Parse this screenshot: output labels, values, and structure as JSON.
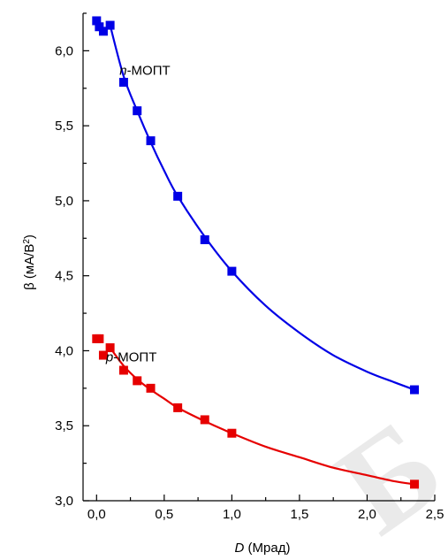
{
  "chart_data": {
    "type": "scatter",
    "xlabel": {
      "italic": "D",
      "rest": " (Мрад)"
    },
    "ylabel": {
      "greek": "β",
      "base": "  (мА/В",
      "sup": "2",
      "close": ")"
    },
    "xlim": [
      -0.1,
      2.5
    ],
    "ylim": [
      3.0,
      6.25
    ],
    "x_ticks": [
      0.0,
      0.5,
      1.0,
      1.5,
      2.0,
      2.5
    ],
    "x_tick_labels": [
      "0,0",
      "0,5",
      "1,0",
      "1,5",
      "2,0",
      "2,5"
    ],
    "y_ticks": [
      3.0,
      3.5,
      4.0,
      4.5,
      5.0,
      5.5,
      6.0
    ],
    "y_tick_labels": [
      "3,0",
      "3,5",
      "4,0",
      "4,5",
      "5,0",
      "5,5",
      "6,0"
    ],
    "grid": false,
    "series": [
      {
        "name": "n-МОПТ",
        "label_italic": "n",
        "label_rest": "-МОПТ",
        "color": "#0000e6",
        "marker": "square",
        "points": [
          {
            "x": 0.0,
            "y": 6.2
          },
          {
            "x": 0.02,
            "y": 6.16
          },
          {
            "x": 0.05,
            "y": 6.13
          },
          {
            "x": 0.1,
            "y": 6.17
          },
          {
            "x": 0.2,
            "y": 5.79
          },
          {
            "x": 0.3,
            "y": 5.6
          },
          {
            "x": 0.4,
            "y": 5.4
          },
          {
            "x": 0.6,
            "y": 5.03
          },
          {
            "x": 0.8,
            "y": 4.74
          },
          {
            "x": 1.0,
            "y": 4.53
          },
          {
            "x": 2.35,
            "y": 3.74
          }
        ],
        "fit": [
          {
            "x": 0.1,
            "y": 6.17
          },
          {
            "x": 0.2,
            "y": 5.83
          },
          {
            "x": 0.3,
            "y": 5.6
          },
          {
            "x": 0.4,
            "y": 5.39
          },
          {
            "x": 0.5,
            "y": 5.2
          },
          {
            "x": 0.6,
            "y": 5.03
          },
          {
            "x": 0.8,
            "y": 4.76
          },
          {
            "x": 1.0,
            "y": 4.53
          },
          {
            "x": 1.25,
            "y": 4.3
          },
          {
            "x": 1.5,
            "y": 4.12
          },
          {
            "x": 1.75,
            "y": 3.97
          },
          {
            "x": 2.0,
            "y": 3.86
          },
          {
            "x": 2.2,
            "y": 3.79
          },
          {
            "x": 2.35,
            "y": 3.74
          }
        ]
      },
      {
        "name": "p-МОПТ",
        "label_italic": "p",
        "label_rest": "-МОПТ",
        "color": "#e60000",
        "marker": "square",
        "points": [
          {
            "x": 0.0,
            "y": 4.08
          },
          {
            "x": 0.02,
            "y": 4.08
          },
          {
            "x": 0.05,
            "y": 3.97
          },
          {
            "x": 0.1,
            "y": 4.02
          },
          {
            "x": 0.2,
            "y": 3.87
          },
          {
            "x": 0.3,
            "y": 3.8
          },
          {
            "x": 0.4,
            "y": 3.75
          },
          {
            "x": 0.6,
            "y": 3.62
          },
          {
            "x": 0.8,
            "y": 3.54
          },
          {
            "x": 1.0,
            "y": 3.45
          },
          {
            "x": 2.35,
            "y": 3.11
          }
        ],
        "fit": [
          {
            "x": 0.1,
            "y": 4.02
          },
          {
            "x": 0.2,
            "y": 3.9
          },
          {
            "x": 0.3,
            "y": 3.81
          },
          {
            "x": 0.4,
            "y": 3.74
          },
          {
            "x": 0.5,
            "y": 3.68
          },
          {
            "x": 0.6,
            "y": 3.62
          },
          {
            "x": 0.8,
            "y": 3.53
          },
          {
            "x": 1.0,
            "y": 3.45
          },
          {
            "x": 1.25,
            "y": 3.36
          },
          {
            "x": 1.5,
            "y": 3.29
          },
          {
            "x": 1.75,
            "y": 3.22
          },
          {
            "x": 2.0,
            "y": 3.17
          },
          {
            "x": 2.2,
            "y": 3.13
          },
          {
            "x": 2.35,
            "y": 3.11
          }
        ]
      }
    ]
  },
  "watermark": {
    "text": "Б"
  }
}
